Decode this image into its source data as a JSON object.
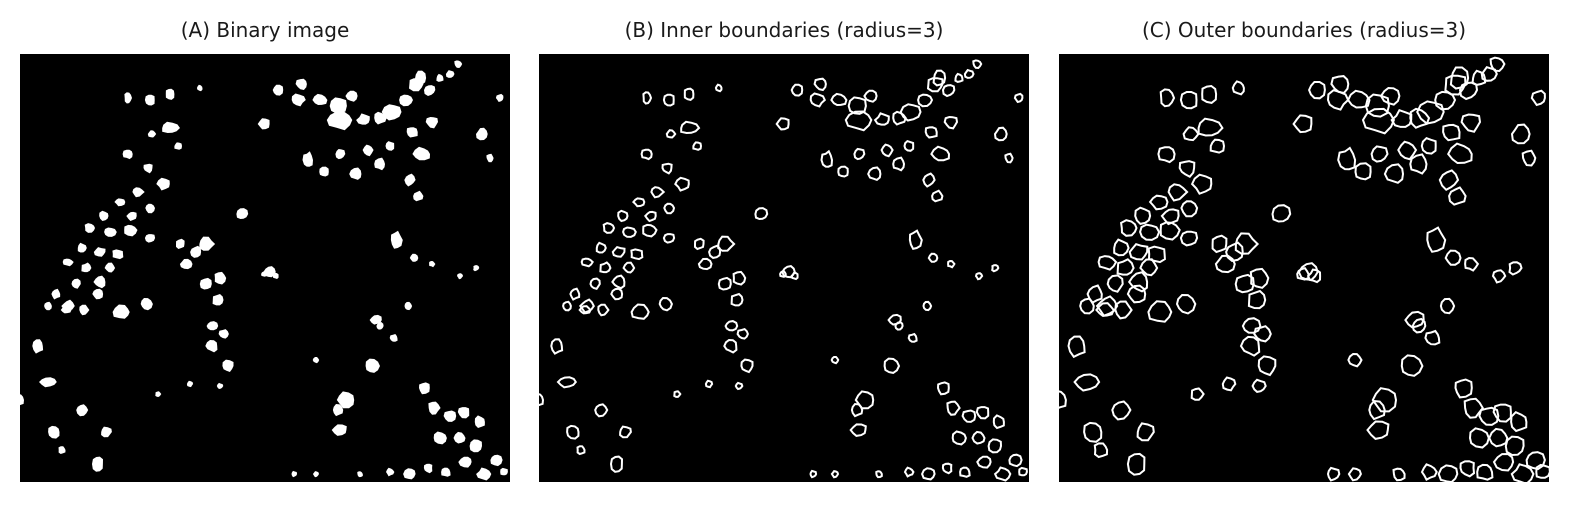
{
  "figure": {
    "panels": [
      {
        "title": "(A) Binary image",
        "mode": "filled"
      },
      {
        "title": "(B) Inner boundaries (radius=3)",
        "mode": "inner"
      },
      {
        "title": "(C) Outer boundaries (radius=3)",
        "mode": "outer"
      }
    ]
  },
  "colors": {
    "background": "#000000",
    "foreground": "#ffffff"
  }
}
